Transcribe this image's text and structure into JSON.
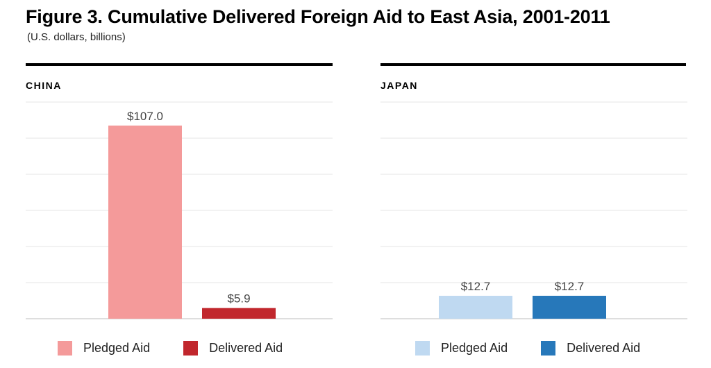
{
  "title": "Figure 3.  Cumulative Delivered Foreign Aid to East Asia, 2001-2011",
  "subtitle": "(U.S. dollars, billions)",
  "chart_data": [
    {
      "type": "bar",
      "panel": "CHINA",
      "categories": [
        "Pledged Aid",
        "Delivered Aid"
      ],
      "values": [
        107.0,
        5.9
      ],
      "data_labels": [
        "$107.0",
        "$5.9"
      ],
      "colors": [
        "#f49a9a",
        "#c1272d"
      ],
      "ylim": [
        0,
        120
      ],
      "grid": true,
      "legend": [
        {
          "label": "Pledged Aid",
          "color": "#f49a9a"
        },
        {
          "label": "Delivered Aid",
          "color": "#c1272d"
        }
      ]
    },
    {
      "type": "bar",
      "panel": "JAPAN",
      "categories": [
        "Pledged Aid",
        "Delivered Aid"
      ],
      "values": [
        12.7,
        12.7
      ],
      "data_labels": [
        "$12.7",
        "$12.7"
      ],
      "colors": [
        "#bfd9f1",
        "#2778ba"
      ],
      "ylim": [
        0,
        120
      ],
      "grid": true,
      "legend": [
        {
          "label": "Pledged Aid",
          "color": "#bfd9f1"
        },
        {
          "label": "Delivered Aid",
          "color": "#2778ba"
        }
      ]
    }
  ]
}
